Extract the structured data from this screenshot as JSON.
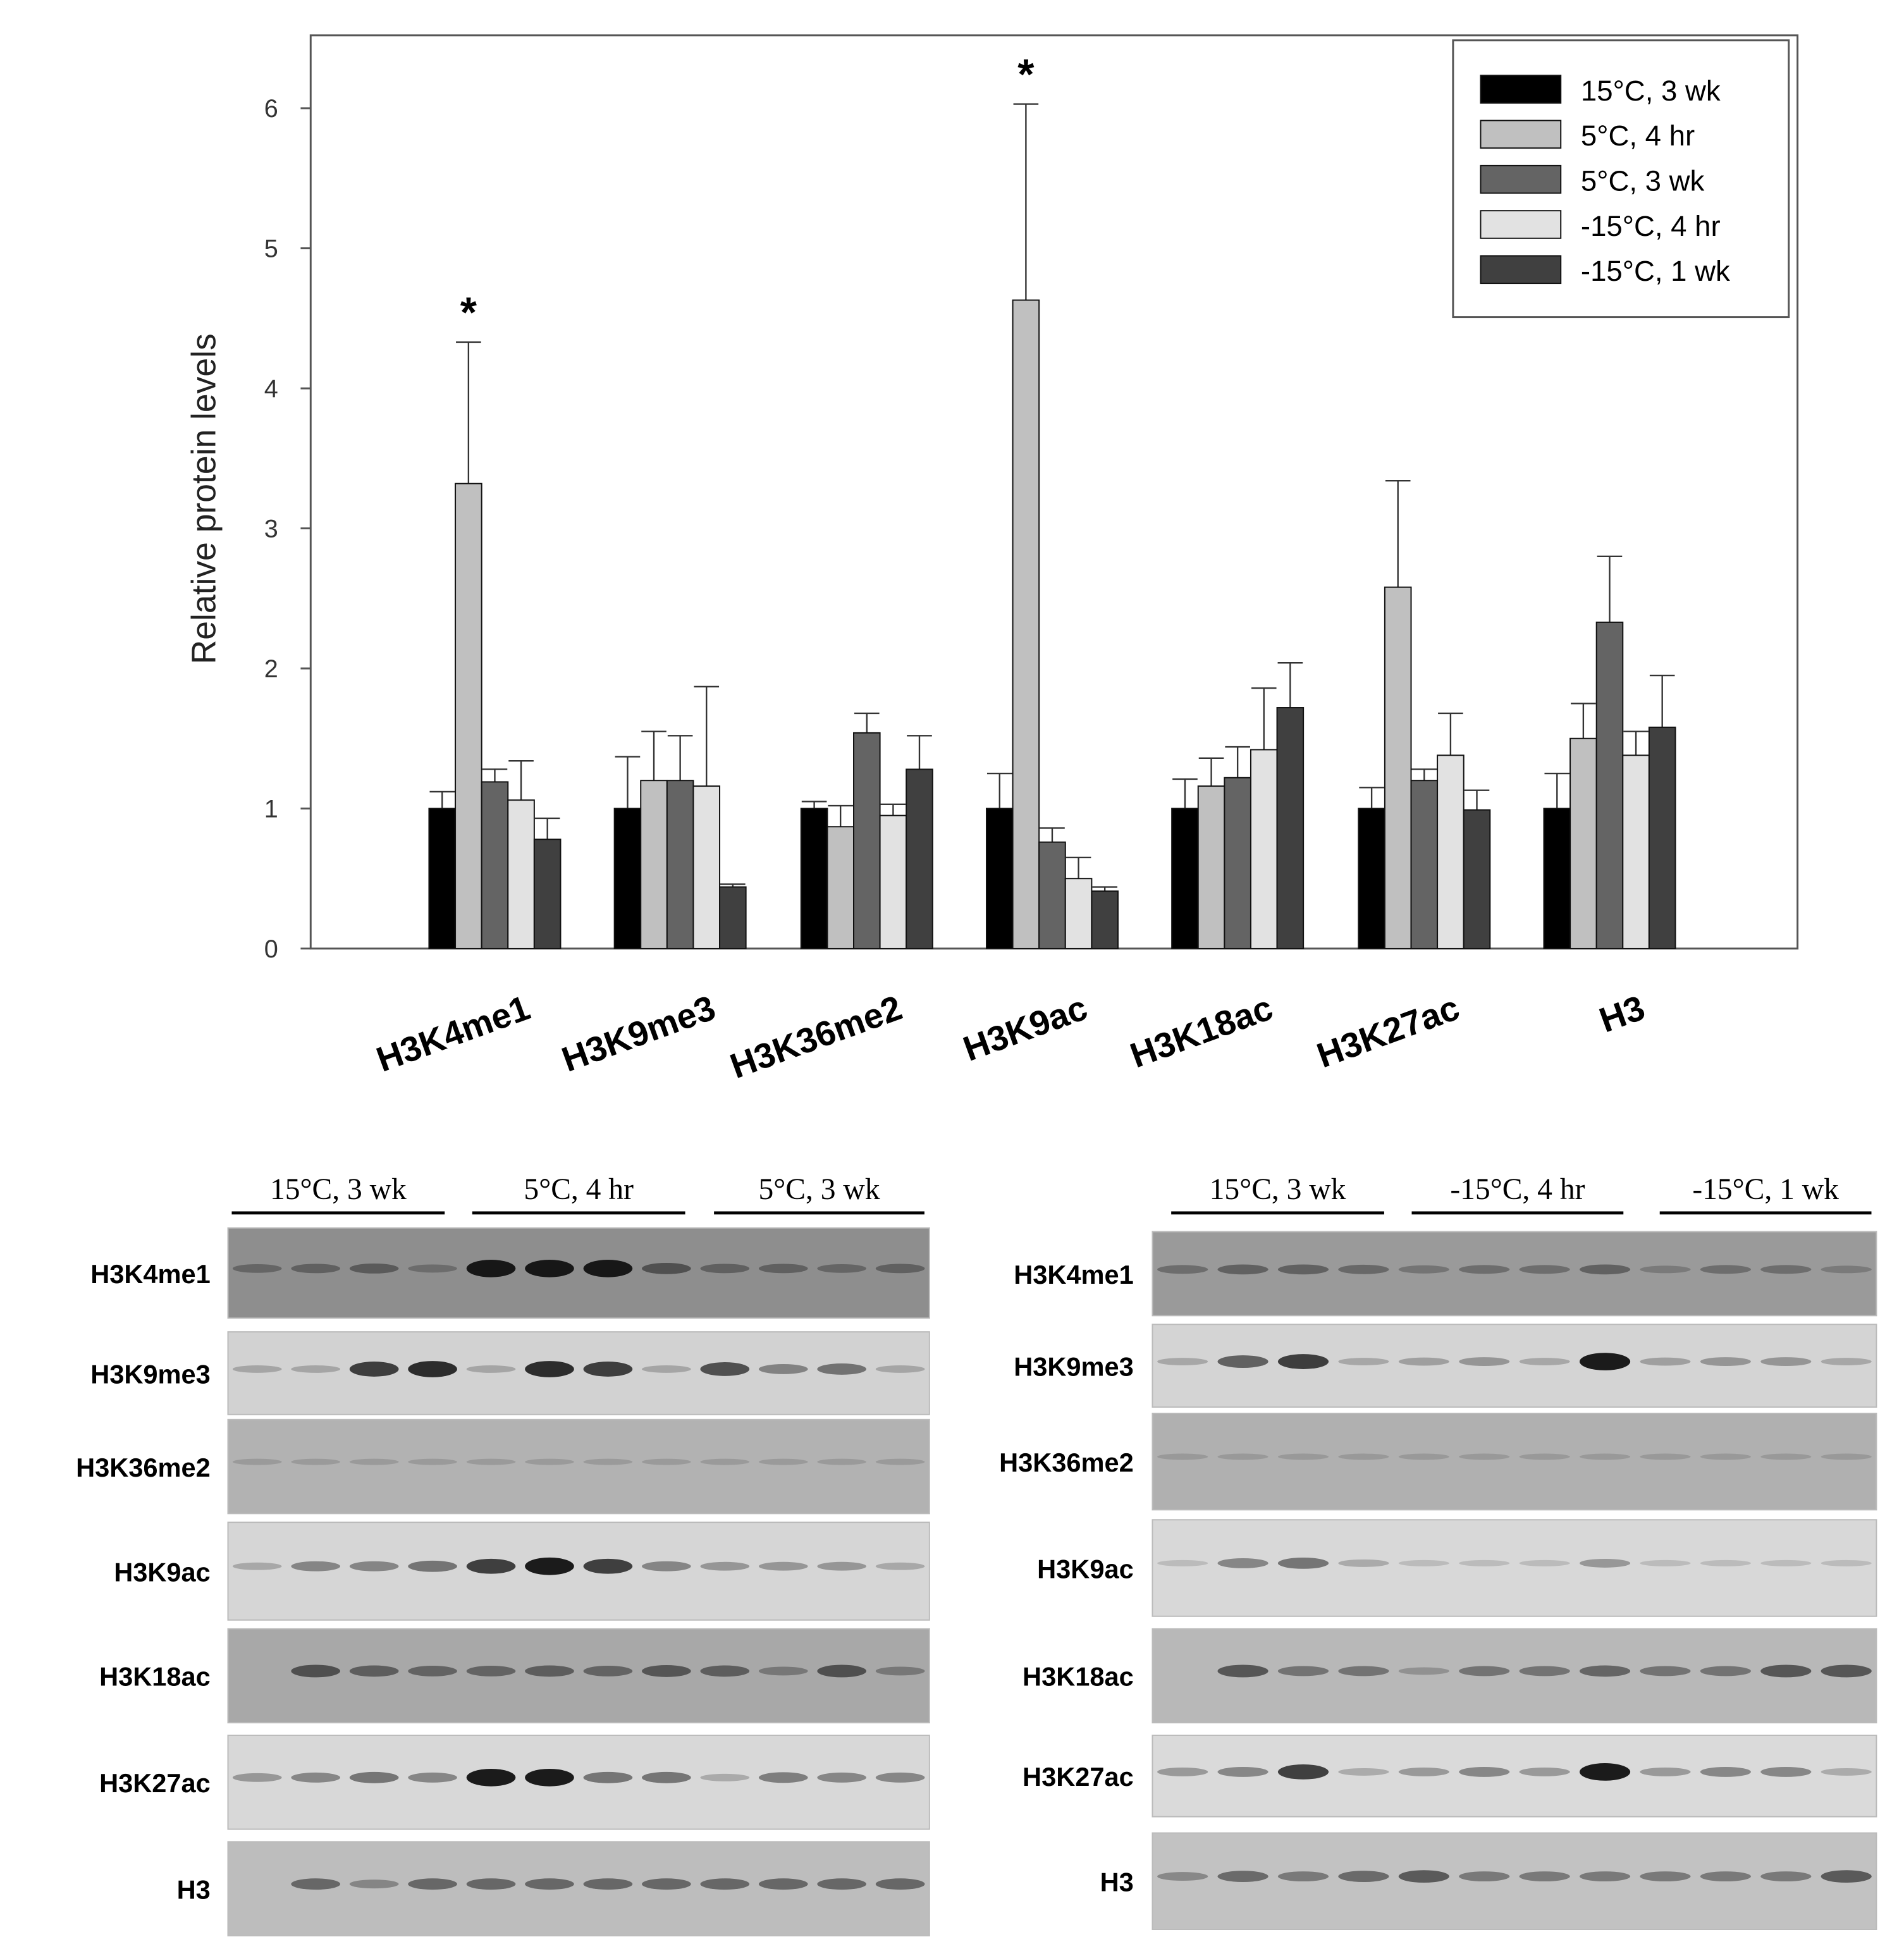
{
  "chart_data": {
    "type": "bar",
    "ylabel": "Relative protein levels",
    "xlabel": "",
    "ylim": [
      0,
      6.5
    ],
    "yticks": [
      0,
      1,
      2,
      3,
      4,
      5,
      6
    ],
    "grid": false,
    "legend_placement": "top-right",
    "categories": [
      "H3K4me1",
      "H3K9me3",
      "H3K36me2",
      "H3K9ac",
      "H3K18ac",
      "H3K27ac",
      "H3"
    ],
    "series": [
      {
        "name": "15°C, 3 wk",
        "color": "#000000",
        "values": [
          1.0,
          1.0,
          1.0,
          1.0,
          1.0,
          1.0,
          1.0
        ],
        "error_upper": [
          1.12,
          1.37,
          1.05,
          1.25,
          1.21,
          1.15,
          1.25
        ]
      },
      {
        "name": "5°C, 4 hr",
        "color": "#c0c0c0",
        "values": [
          3.32,
          1.2,
          0.87,
          4.63,
          1.16,
          2.58,
          1.5
        ],
        "error_upper": [
          4.33,
          1.55,
          1.02,
          6.03,
          1.36,
          3.34,
          1.75
        ]
      },
      {
        "name": "5°C, 3 wk",
        "color": "#646464",
        "values": [
          1.19,
          1.2,
          1.54,
          0.76,
          1.22,
          1.2,
          2.33
        ],
        "error_upper": [
          1.28,
          1.52,
          1.68,
          0.86,
          1.44,
          1.28,
          2.8
        ]
      },
      {
        "name": "-15°C, 4 hr",
        "color": "#e2e2e2",
        "values": [
          1.06,
          1.16,
          0.95,
          0.5,
          1.42,
          1.38,
          1.38
        ],
        "error_upper": [
          1.34,
          1.87,
          1.03,
          0.65,
          1.86,
          1.68,
          1.55
        ]
      },
      {
        "name": "-15°C, 1 wk",
        "color": "#404040",
        "values": [
          0.78,
          0.44,
          1.28,
          0.41,
          1.72,
          0.99,
          1.58
        ],
        "error_upper": [
          0.93,
          0.46,
          1.52,
          0.44,
          2.04,
          1.13,
          1.95
        ]
      }
    ],
    "annotations": [
      {
        "text": "*",
        "category": "H3K4me1",
        "series": "5°C, 4 hr"
      },
      {
        "text": "*",
        "category": "H3K9ac",
        "series": "5°C, 4 hr"
      }
    ]
  },
  "blots": {
    "left": {
      "groups": [
        "15°C, 3 wk",
        "5°C, 4 hr",
        "5°C, 3 wk"
      ],
      "rows": [
        "H3K4me1",
        "H3K9me3",
        "H3K36me2",
        "H3K9ac",
        "H3K18ac",
        "H3K27ac",
        "H3"
      ]
    },
    "right": {
      "groups": [
        "15°C, 3 wk",
        "-15°C, 4 hr",
        "-15°C, 1 wk"
      ],
      "rows": [
        "H3K4me1",
        "H3K9me3",
        "H3K36me2",
        "H3K9ac",
        "H3K18ac",
        "H3K27ac",
        "H3"
      ]
    }
  }
}
